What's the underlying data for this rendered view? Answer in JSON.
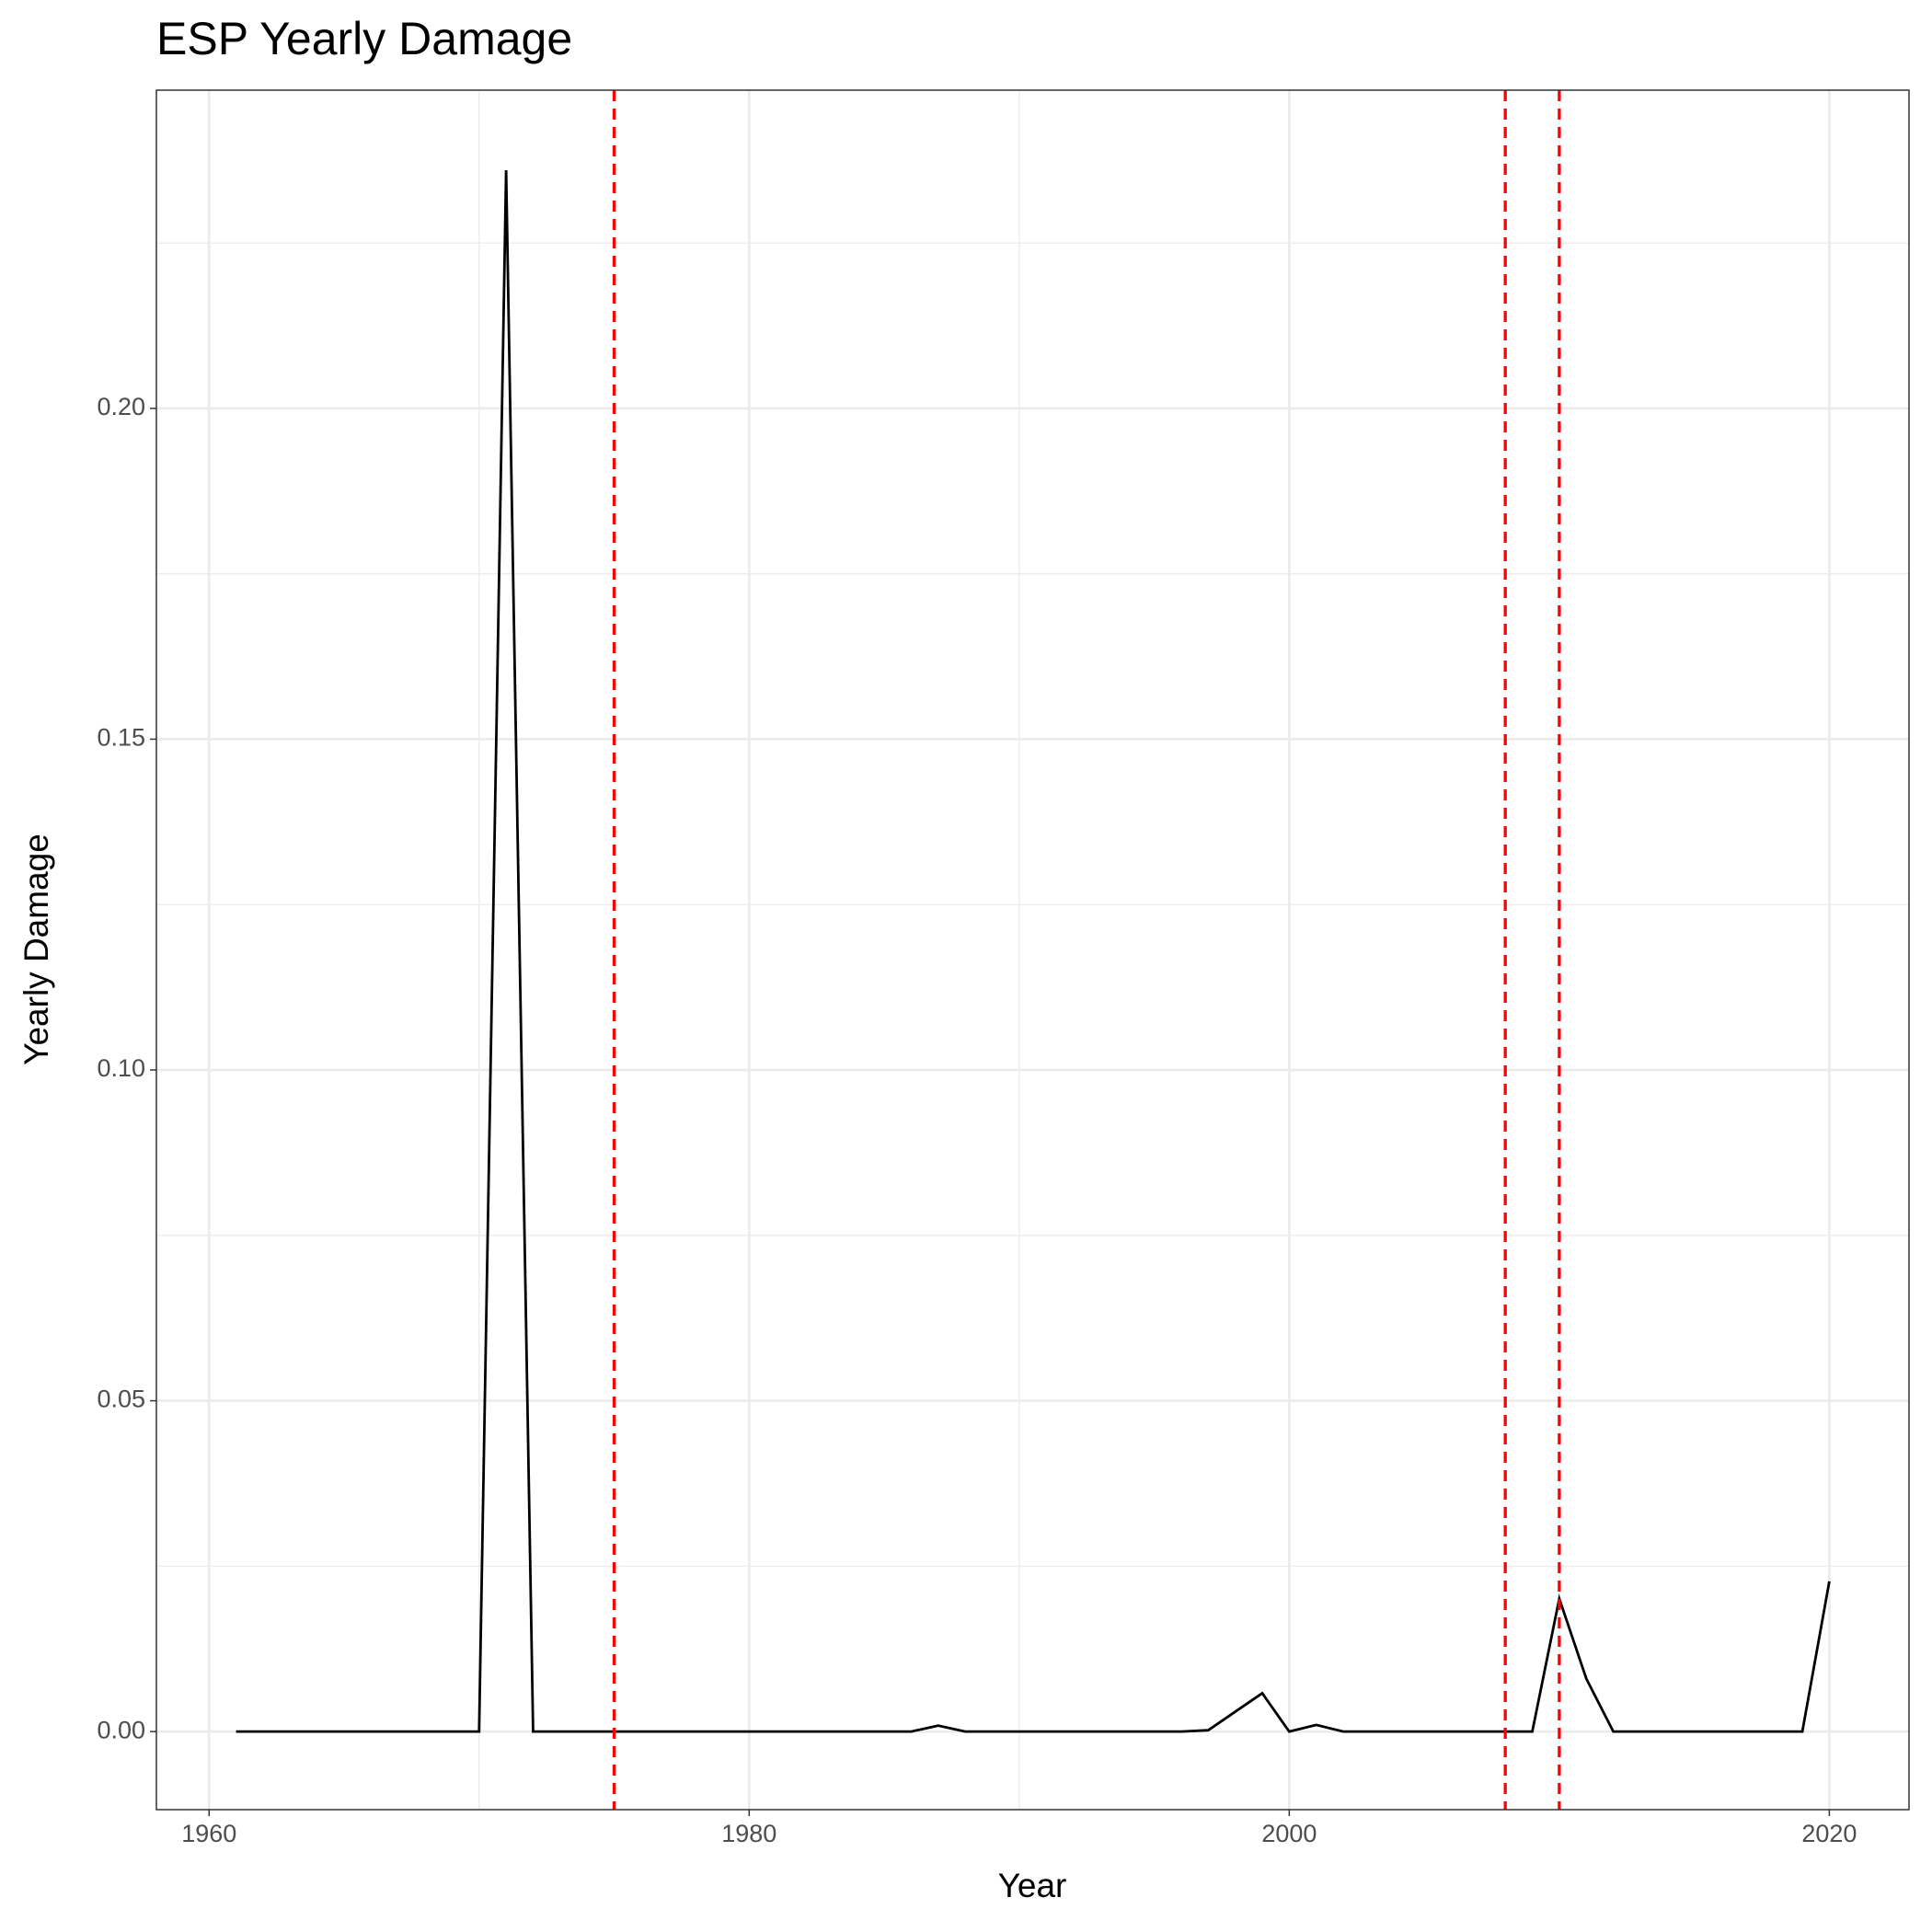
{
  "chart_data": {
    "type": "line",
    "title": "ESP Yearly Damage",
    "x_label": "Year",
    "y_label": "Yearly Damage",
    "x": [
      1961,
      1962,
      1963,
      1964,
      1965,
      1966,
      1967,
      1968,
      1969,
      1970,
      1971,
      1972,
      1973,
      1974,
      1975,
      1976,
      1977,
      1978,
      1979,
      1980,
      1981,
      1982,
      1983,
      1984,
      1985,
      1986,
      1987,
      1988,
      1989,
      1990,
      1991,
      1992,
      1993,
      1994,
      1995,
      1996,
      1997,
      1998,
      1999,
      2000,
      2001,
      2002,
      2003,
      2004,
      2005,
      2006,
      2007,
      2008,
      2009,
      2010,
      2011,
      2012,
      2013,
      2014,
      2015,
      2016,
      2017,
      2018,
      2019,
      2020
    ],
    "series": [
      {
        "color": "#000000",
        "values": [
          0,
          0,
          0,
          0,
          0,
          0,
          0,
          0,
          0,
          0,
          0.236,
          0,
          0,
          0,
          0,
          0,
          0,
          0,
          0,
          0,
          0,
          0,
          0,
          0,
          0,
          0,
          0.0009,
          0,
          0,
          0,
          0,
          0,
          0,
          0,
          0,
          0,
          0.0002,
          0.003,
          0.0058,
          0,
          0.001,
          0,
          0,
          0,
          0,
          0,
          0,
          0,
          0,
          0.0201,
          0.008,
          0,
          0,
          0,
          0,
          0,
          0,
          0,
          0,
          0.0227
        ]
      }
    ],
    "vlines": {
      "color": "#ff0000",
      "values": [
        1975,
        2008,
        2010
      ]
    },
    "xlim": [
      1958.05,
      2022.95
    ],
    "xticks": [
      1960,
      1980,
      2000,
      2020
    ],
    "x_minor_grid": [
      1970,
      1990,
      2010
    ],
    "ylim": [
      -0.0118,
      0.2481
    ],
    "yticks": [
      {
        "value": 0,
        "label": "0.00"
      },
      0.05,
      {
        "value": 0.1,
        "label": "0.10"
      },
      0.15,
      {
        "value": 0.2,
        "label": "0.20"
      }
    ],
    "y_minor_grid": [
      0.025,
      0.075,
      0.125,
      0.175,
      0.225
    ],
    "grid": true
  }
}
